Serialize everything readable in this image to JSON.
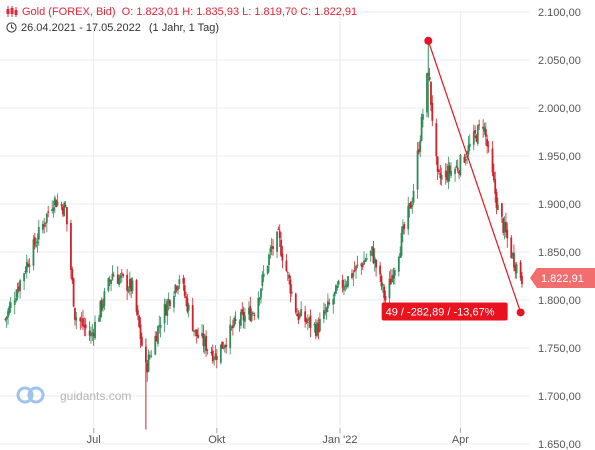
{
  "header": {
    "instrument": "Gold (FOREX, Bid)",
    "ohlc": "O: 1.823,01  H: 1.835,93  L: 1.819,70  C: 1.822,91",
    "range": "26.04.2021 - 17.05.2022",
    "interval": "(1 Jahr, 1 Tag)"
  },
  "watermark": "guidants.com",
  "colors": {
    "up": "#2e8b57",
    "down": "#d0202a",
    "accent": "#e8131f",
    "price_tag": "#f26d6d",
    "grid": "#ececec",
    "axis_text": "#555555"
  },
  "chart_data": {
    "type": "candlestick",
    "title": "Gold (FOREX, Bid)",
    "xlabel": "",
    "ylabel": "",
    "ylim": [
      1650,
      2100
    ],
    "yticks": [
      "2.100,00",
      "2.050,00",
      "2.000,00",
      "1.950,00",
      "1.900,00",
      "1.850,00",
      "1.800,00",
      "1.750,00",
      "1.700,00",
      "1.650,00"
    ],
    "xticks": [
      "Jul",
      "Okt",
      "Jan '22",
      "Apr"
    ],
    "grid": true,
    "last_price_label": "1.822,91",
    "last_price": 1822.91,
    "ohlc_last": {
      "open": 1823.01,
      "high": 1835.93,
      "low": 1819.7,
      "close": 1822.91
    },
    "trendline": {
      "start": {
        "date": "2022-03-08",
        "price": 2070
      },
      "end": {
        "date": "2022-05-16",
        "price": 1787
      },
      "label": "49 / -282,89 / -13,67%"
    },
    "approx_closes": [
      {
        "date": "2021-04-26",
        "close": 1780
      },
      {
        "date": "2021-05-14",
        "close": 1845
      },
      {
        "date": "2021-06-01",
        "close": 1905
      },
      {
        "date": "2021-06-10",
        "close": 1895
      },
      {
        "date": "2021-06-17",
        "close": 1785
      },
      {
        "date": "2021-06-29",
        "close": 1762
      },
      {
        "date": "2021-07-15",
        "close": 1828
      },
      {
        "date": "2021-07-30",
        "close": 1812
      },
      {
        "date": "2021-08-09",
        "close": 1728
      },
      {
        "date": "2021-08-20",
        "close": 1780
      },
      {
        "date": "2021-09-03",
        "close": 1825
      },
      {
        "date": "2021-09-15",
        "close": 1765
      },
      {
        "date": "2021-09-30",
        "close": 1742
      },
      {
        "date": "2021-10-15",
        "close": 1775
      },
      {
        "date": "2021-10-29",
        "close": 1790
      },
      {
        "date": "2021-11-10",
        "close": 1850
      },
      {
        "date": "2021-11-16",
        "close": 1865
      },
      {
        "date": "2021-11-30",
        "close": 1785
      },
      {
        "date": "2021-12-15",
        "close": 1770
      },
      {
        "date": "2021-12-31",
        "close": 1812
      },
      {
        "date": "2022-01-25",
        "close": 1850
      },
      {
        "date": "2022-02-04",
        "close": 1800
      },
      {
        "date": "2022-02-24",
        "close": 1905
      },
      {
        "date": "2022-03-08",
        "close": 2040
      },
      {
        "date": "2022-03-15",
        "close": 1925
      },
      {
        "date": "2022-03-31",
        "close": 1940
      },
      {
        "date": "2022-04-18",
        "close": 1985
      },
      {
        "date": "2022-04-29",
        "close": 1895
      },
      {
        "date": "2022-05-10",
        "close": 1845
      },
      {
        "date": "2022-05-17",
        "close": 1822.91
      }
    ]
  }
}
